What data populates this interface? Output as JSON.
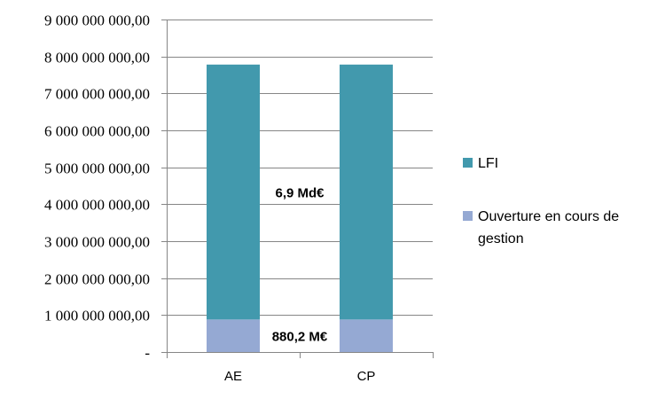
{
  "chart_data": {
    "type": "bar",
    "stacked": true,
    "categories": [
      "AE",
      "CP"
    ],
    "series": [
      {
        "name": "Ouverture en cours de gestion",
        "values": [
          880200000,
          880200000
        ],
        "color": "#95a9d3"
      },
      {
        "name": "LFI",
        "values": [
          6900000000,
          6900000000
        ],
        "color": "#4299ad"
      }
    ],
    "ylim": [
      0,
      9000000000
    ],
    "yticks": [
      {
        "value": 0,
        "label": "-"
      },
      {
        "value": 1000000000,
        "label": "1 000 000 000,00"
      },
      {
        "value": 2000000000,
        "label": "2 000 000 000,00"
      },
      {
        "value": 3000000000,
        "label": "3 000 000 000,00"
      },
      {
        "value": 4000000000,
        "label": "4 000 000 000,00"
      },
      {
        "value": 5000000000,
        "label": "5 000 000 000,00"
      },
      {
        "value": 6000000000,
        "label": "6 000 000 000,00"
      },
      {
        "value": 7000000000,
        "label": "7 000 000 000,00"
      },
      {
        "value": 8000000000,
        "label": "8 000 000 000,00"
      },
      {
        "value": 9000000000,
        "label": "9 000 000 000,00"
      }
    ],
    "grid": true,
    "legend_position": "right",
    "legend_order": [
      "LFI",
      "Ouverture en cours de gestion"
    ],
    "annotations": [
      {
        "text": "6,9 Md€",
        "series": "LFI"
      },
      {
        "text": "880,2 M€",
        "series": "Ouverture en cours de gestion"
      }
    ],
    "title": "",
    "xlabel": "",
    "ylabel": ""
  }
}
